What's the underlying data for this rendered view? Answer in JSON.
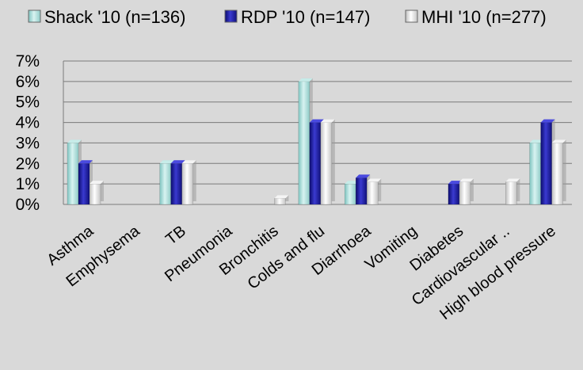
{
  "chart_data": {
    "type": "bar",
    "title": "",
    "xlabel": "",
    "ylabel": "",
    "ylim": [
      0,
      7
    ],
    "yticks": [
      "0%",
      "1%",
      "2%",
      "3%",
      "4%",
      "5%",
      "6%",
      "7%"
    ],
    "grid": true,
    "legend_position": "top",
    "categories": [
      "Asthma",
      "Emphysema",
      "TB",
      "Pneumonia",
      "Bronchitis",
      "Colds and flu",
      "Diarrhoea",
      "Vomiting",
      "Diabetes",
      "Cardiovascular ..",
      "High blood pressure"
    ],
    "series": [
      {
        "name": "Shack '10 (n=136)",
        "color": "#a8dcd8",
        "values": [
          3,
          0,
          2,
          0,
          0,
          6,
          1,
          0,
          0,
          0,
          3
        ]
      },
      {
        "name": "RDP '10 (n=147)",
        "color": "#1a1a9c",
        "values": [
          2,
          0,
          2,
          0,
          0,
          4,
          1.3,
          0,
          1,
          0,
          4
        ]
      },
      {
        "name": "MHI '10 (n=277)",
        "color": "#e6e6e6",
        "values": [
          1,
          0,
          2,
          0,
          0.3,
          4,
          1.1,
          0,
          1.1,
          1.1,
          3
        ]
      }
    ]
  }
}
